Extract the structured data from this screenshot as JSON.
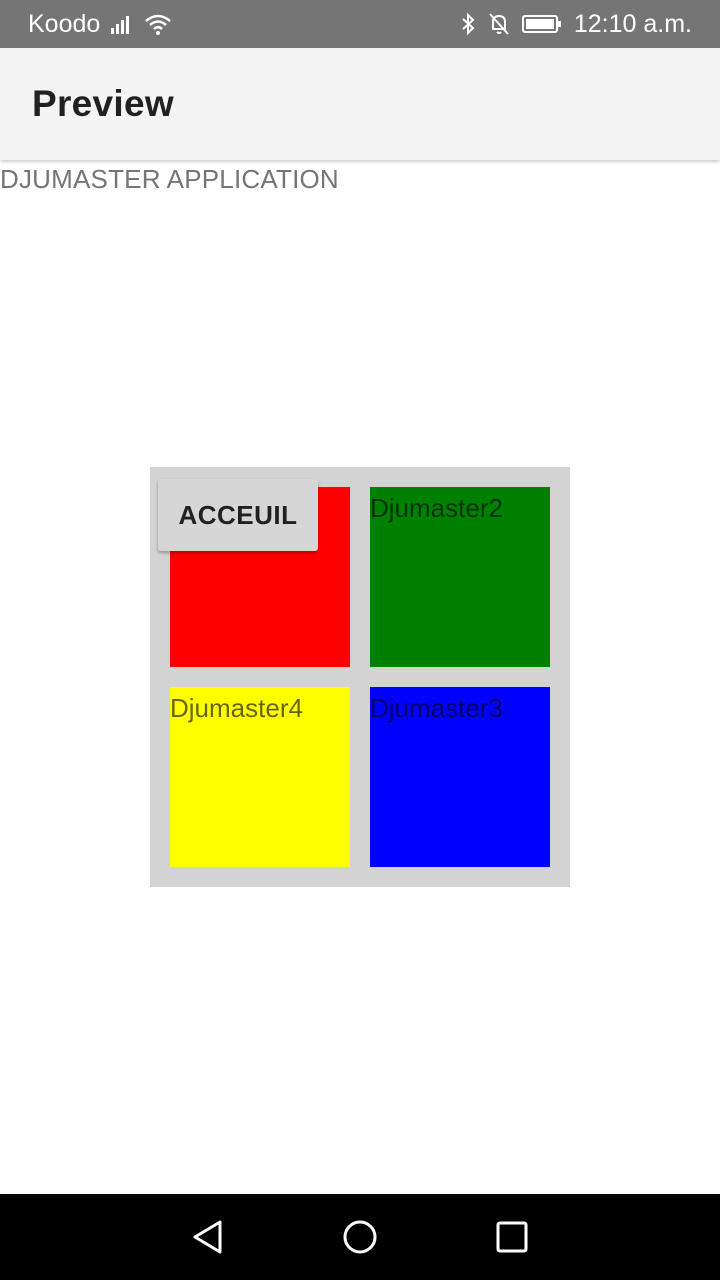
{
  "status_bar": {
    "carrier": "Koodo",
    "time": "12:10 a.m.",
    "icons": [
      "signal-icon",
      "wifi-icon",
      "bluetooth-icon",
      "notifications-off-icon",
      "battery-icon"
    ]
  },
  "app_bar": {
    "title": "Preview"
  },
  "content": {
    "app_label": "DJUMASTER APPLICATION",
    "button_label": "ACCEUIL",
    "tiles": [
      {
        "label": "",
        "color": "#ff0000"
      },
      {
        "label": "Djumaster2",
        "color": "#008000"
      },
      {
        "label": "Djumaster4",
        "color": "#ffff00"
      },
      {
        "label": "Djumaster3",
        "color": "#0000ff"
      }
    ],
    "panel_color": "#d3d3d3"
  },
  "nav_bar": {
    "icons": [
      "back-icon",
      "home-icon",
      "recents-icon"
    ]
  }
}
